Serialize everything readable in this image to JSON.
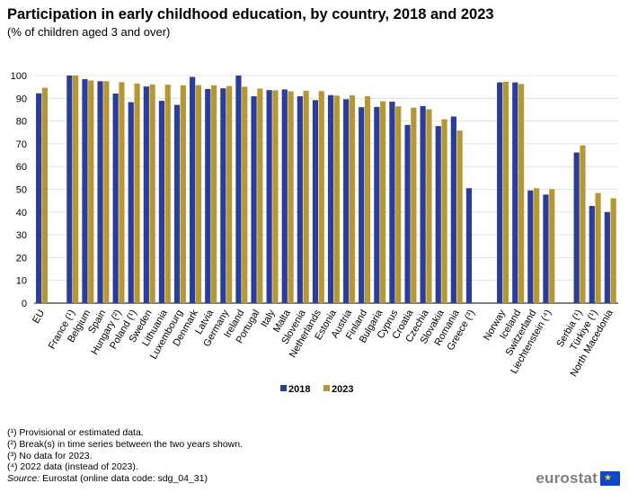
{
  "title": "Participation in early childhood education, by country, 2018 and 2023",
  "subtitle": "(% of children aged 3 and over)",
  "chart_data": {
    "type": "bar",
    "ylim": [
      0,
      100
    ],
    "yticks": [
      0,
      10,
      20,
      30,
      40,
      50,
      60,
      70,
      80,
      90,
      100
    ],
    "grid": true,
    "legend_position": "bottom-center",
    "groups": [
      {
        "categories": [
          "EU"
        ]
      },
      {
        "categories": [
          "France (¹)",
          "Belgium",
          "Spain",
          "Hungary (²)",
          "Poland (¹)",
          "Sweden",
          "Lithuania",
          "Luxembourg",
          "Denmark",
          "Latvia",
          "Germany",
          "Ireland",
          "Portugal",
          "Italy",
          "Malta",
          "Slovenia",
          "Netherlands",
          "Estonia",
          "Austria",
          "Finland",
          "Bulgaria",
          "Cyprus",
          "Croatia",
          "Czechia",
          "Slovakia",
          "Romania",
          "Greece (³)"
        ]
      },
      {
        "categories": [
          "Norway",
          "Iceland",
          "Switzerland",
          "Liechtenstein (⁴)"
        ]
      },
      {
        "categories": [
          "Serbia (¹)",
          "Türkiye (¹)",
          "North Macedonia"
        ]
      }
    ],
    "series": [
      {
        "name": "2018",
        "color": "#2a3d9a",
        "values": [
          92.2,
          100,
          98.4,
          97.5,
          92.1,
          88.3,
          95.2,
          88.9,
          87.1,
          99.4,
          94.1,
          94.4,
          100,
          90.9,
          93.6,
          93.9,
          90.9,
          89.2,
          91.4,
          89.6,
          86.1,
          86.2,
          88.5,
          78.3,
          86.6,
          77.8,
          82.0,
          50.5,
          97.0,
          97.0,
          49.5,
          47.7,
          66.2,
          42.7,
          40.0
        ]
      },
      {
        "name": "2023",
        "color": "#b69832",
        "values": [
          94.6,
          100,
          97.8,
          97.5,
          97.1,
          96.5,
          96.1,
          96.0,
          95.7,
          95.8,
          95.7,
          95.4,
          95.1,
          94.3,
          93.5,
          93.1,
          93.3,
          93.2,
          91.2,
          91.3,
          90.9,
          88.7,
          86.5,
          85.9,
          85.2,
          80.8,
          75.8,
          null,
          97.3,
          96.3,
          50.5,
          50.1,
          69.3,
          48.4,
          46.1
        ]
      }
    ]
  },
  "legend": [
    {
      "label": "2018",
      "color": "#2a3d9a"
    },
    {
      "label": "2023",
      "color": "#b69832"
    }
  ],
  "notes": [
    "(¹) Provisional or estimated data.",
    "(²) Break(s) in time series between the two years shown.",
    "(³) No data for 2023.",
    "(⁴) 2022 data (instead of 2023)."
  ],
  "source_prefix": "Source:",
  "source_text": " Eurostat (online data code: sdg_04_31)",
  "logo_text": "eurostat",
  "logo_flag_icon": "eu-flag-icon"
}
